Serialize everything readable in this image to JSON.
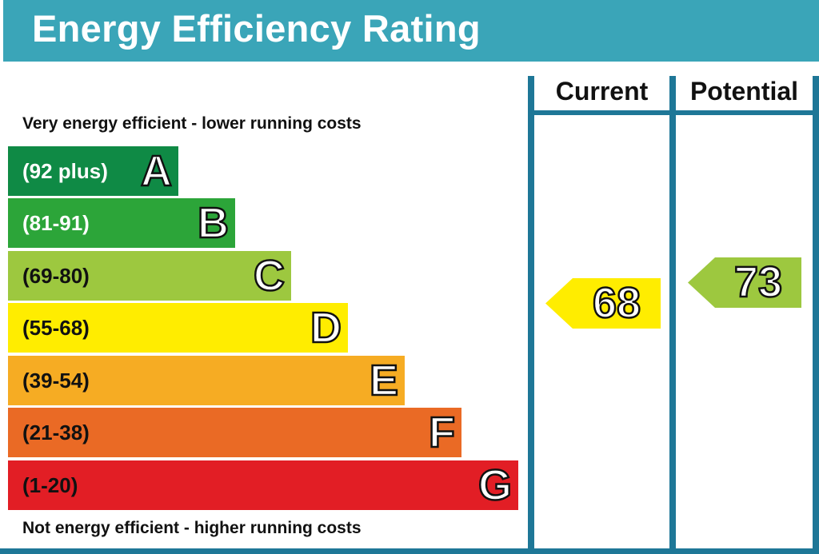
{
  "title": "Energy Efficiency Rating",
  "columns": {
    "current": "Current",
    "potential": "Potential"
  },
  "captions": {
    "top": "Very energy efficient - lower running costs",
    "bottom": "Not energy efficient - higher running costs"
  },
  "colors": {
    "header": "#3aa5b8",
    "frame": "#1e7797"
  },
  "chart_data": {
    "type": "bar",
    "categories": [
      "A",
      "B",
      "C",
      "D",
      "E",
      "F",
      "G"
    ],
    "ranges": [
      "(92 plus)",
      "(81-91)",
      "(69-80)",
      "(55-68)",
      "(39-54)",
      "(21-38)",
      "(1-20)"
    ],
    "colors": [
      "#0f8a45",
      "#2ca539",
      "#9dc83f",
      "#ffed00",
      "#f6ac23",
      "#ea6a25",
      "#e21e25"
    ],
    "range_text_colors": [
      "#ffffff",
      "#ffffff",
      "#111111",
      "#111111",
      "#111111",
      "#111111",
      "#111111"
    ],
    "current": {
      "value": "68",
      "band": "D",
      "color": "#ffed00"
    },
    "potential": {
      "value": "73",
      "band": "C",
      "color": "#9dc83f"
    }
  }
}
